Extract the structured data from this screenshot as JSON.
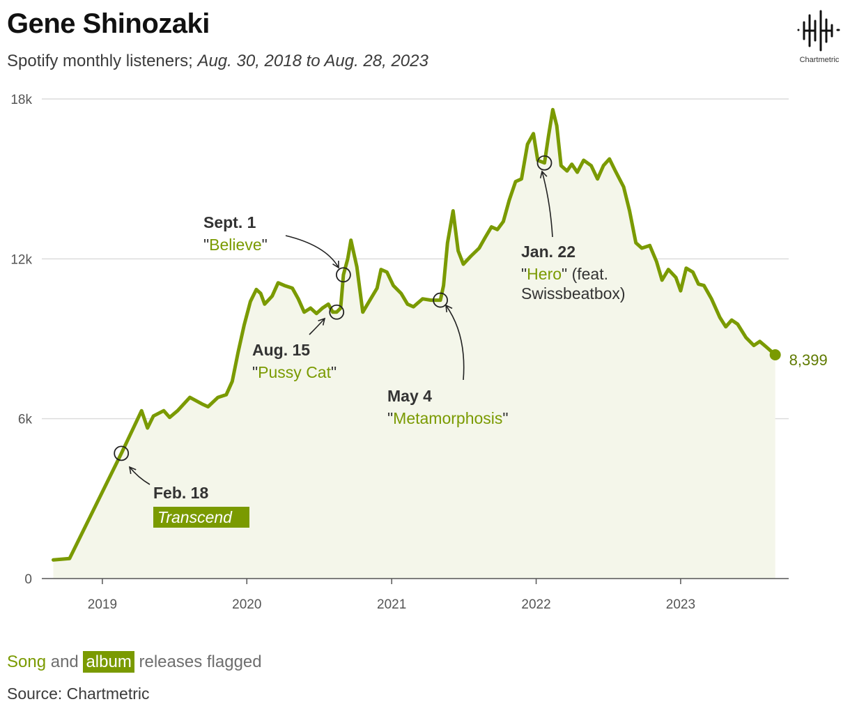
{
  "header": {
    "title": "Gene Shinozaki",
    "subtitle_plain": "Spotify monthly listeners; ",
    "subtitle_dates": "Aug. 30, 2018 to Aug. 28, 2023"
  },
  "logo": {
    "name": "chartmetric-logo-icon",
    "text": "Chartmetric"
  },
  "footer": {
    "song_word": "Song",
    "and_word": " and ",
    "album_word": "album",
    "rest": " releases flagged",
    "source": "Source: Chartmetric"
  },
  "colors": {
    "line": "#7a9a01",
    "area": "#f4f6ea",
    "grid": "#dcdcdc",
    "axis": "#555555"
  },
  "chart_data": {
    "type": "area",
    "title": "Gene Shinozaki",
    "ylim": [
      0,
      18000
    ],
    "xlim": [
      "2018-08-30",
      "2023-08-28"
    ],
    "y_ticks": [
      {
        "value": 0,
        "label": "0"
      },
      {
        "value": 6000,
        "label": "6k"
      },
      {
        "value": 12000,
        "label": "12k"
      },
      {
        "value": 18000,
        "label": "18k"
      }
    ],
    "x_ticks": [
      {
        "value": "2019-01-01",
        "label": "2019"
      },
      {
        "value": "2020-01-01",
        "label": "2020"
      },
      {
        "value": "2021-01-01",
        "label": "2021"
      },
      {
        "value": "2022-01-01",
        "label": "2022"
      },
      {
        "value": "2023-01-01",
        "label": "2023"
      }
    ],
    "grid": true,
    "series": [
      {
        "points": [
          [
            "2018-08-30",
            700
          ],
          [
            "2018-10-10",
            750
          ],
          [
            "2019-02-18",
            4700
          ],
          [
            "2019-04-10",
            6300
          ],
          [
            "2019-04-25",
            5650
          ],
          [
            "2019-05-10",
            6100
          ],
          [
            "2019-06-05",
            6300
          ],
          [
            "2019-06-20",
            6050
          ],
          [
            "2019-07-10",
            6300
          ],
          [
            "2019-08-10",
            6800
          ],
          [
            "2019-09-10",
            6550
          ],
          [
            "2019-09-25",
            6450
          ],
          [
            "2019-10-20",
            6800
          ],
          [
            "2019-11-10",
            6900
          ],
          [
            "2019-11-25",
            7400
          ],
          [
            "2019-12-10",
            8500
          ],
          [
            "2019-12-25",
            9500
          ],
          [
            "2020-01-10",
            10400
          ],
          [
            "2020-01-25",
            10850
          ],
          [
            "2020-02-05",
            10700
          ],
          [
            "2020-02-15",
            10300
          ],
          [
            "2020-03-05",
            10600
          ],
          [
            "2020-03-20",
            11100
          ],
          [
            "2020-04-05",
            11000
          ],
          [
            "2020-04-25",
            10900
          ],
          [
            "2020-05-10",
            10500
          ],
          [
            "2020-05-25",
            10000
          ],
          [
            "2020-06-10",
            10150
          ],
          [
            "2020-06-25",
            9950
          ],
          [
            "2020-07-10",
            10150
          ],
          [
            "2020-07-25",
            10300
          ],
          [
            "2020-08-05",
            10000
          ],
          [
            "2020-08-15",
            10000
          ],
          [
            "2020-08-25",
            10150
          ],
          [
            "2020-09-01",
            11400
          ],
          [
            "2020-09-12",
            12000
          ],
          [
            "2020-09-20",
            12700
          ],
          [
            "2020-10-05",
            11700
          ],
          [
            "2020-10-20",
            10000
          ],
          [
            "2020-11-05",
            10400
          ],
          [
            "2020-11-25",
            10900
          ],
          [
            "2020-12-05",
            11600
          ],
          [
            "2020-12-20",
            11500
          ],
          [
            "2021-01-05",
            11000
          ],
          [
            "2021-01-25",
            10700
          ],
          [
            "2021-02-10",
            10300
          ],
          [
            "2021-02-25",
            10200
          ],
          [
            "2021-03-20",
            10500
          ],
          [
            "2021-04-10",
            10450
          ],
          [
            "2021-05-04",
            10450
          ],
          [
            "2021-05-12",
            11000
          ],
          [
            "2021-05-22",
            12600
          ],
          [
            "2021-06-05",
            13800
          ],
          [
            "2021-06-18",
            12300
          ],
          [
            "2021-07-01",
            11800
          ],
          [
            "2021-07-20",
            12100
          ],
          [
            "2021-08-10",
            12400
          ],
          [
            "2021-08-25",
            12800
          ],
          [
            "2021-09-10",
            13200
          ],
          [
            "2021-09-25",
            13100
          ],
          [
            "2021-10-10",
            13400
          ],
          [
            "2021-10-25",
            14200
          ],
          [
            "2021-11-10",
            14900
          ],
          [
            "2021-11-25",
            15000
          ],
          [
            "2021-12-10",
            16300
          ],
          [
            "2021-12-25",
            16700
          ],
          [
            "2022-01-05",
            15700
          ],
          [
            "2022-01-22",
            15600
          ],
          [
            "2022-02-01",
            16600
          ],
          [
            "2022-02-12",
            17600
          ],
          [
            "2022-02-22",
            17000
          ],
          [
            "2022-03-05",
            15500
          ],
          [
            "2022-03-20",
            15300
          ],
          [
            "2022-04-01",
            15550
          ],
          [
            "2022-04-15",
            15250
          ],
          [
            "2022-05-01",
            15700
          ],
          [
            "2022-05-20",
            15500
          ],
          [
            "2022-06-05",
            15000
          ],
          [
            "2022-06-20",
            15500
          ],
          [
            "2022-07-05",
            15750
          ],
          [
            "2022-07-20",
            15300
          ],
          [
            "2022-08-10",
            14700
          ],
          [
            "2022-08-25",
            13800
          ],
          [
            "2022-09-10",
            12600
          ],
          [
            "2022-09-25",
            12400
          ],
          [
            "2022-10-15",
            12500
          ],
          [
            "2022-11-01",
            11900
          ],
          [
            "2022-11-15",
            11200
          ],
          [
            "2022-12-01",
            11600
          ],
          [
            "2022-12-20",
            11300
          ],
          [
            "2023-01-01",
            10800
          ],
          [
            "2023-01-15",
            11650
          ],
          [
            "2023-02-01",
            11500
          ],
          [
            "2023-02-15",
            11050
          ],
          [
            "2023-03-01",
            11000
          ],
          [
            "2023-03-20",
            10500
          ],
          [
            "2023-04-10",
            9800
          ],
          [
            "2023-04-25",
            9450
          ],
          [
            "2023-05-10",
            9700
          ],
          [
            "2023-05-25",
            9550
          ],
          [
            "2023-06-15",
            9050
          ],
          [
            "2023-07-05",
            8750
          ],
          [
            "2023-07-20",
            8900
          ],
          [
            "2023-08-05",
            8700
          ],
          [
            "2023-08-28",
            8399
          ]
        ]
      }
    ],
    "end_label": {
      "date": "2023-08-28",
      "value": 8399,
      "label": "8,399"
    },
    "annotations": [
      {
        "id": "feb18",
        "date": "2019-02-18",
        "value": 4700,
        "date_label": "Feb. 18",
        "release": "Transcend",
        "kind": "album"
      },
      {
        "id": "aug15",
        "date": "2020-08-15",
        "value": 10000,
        "date_label": "Aug. 15",
        "release": "Pussy Cat",
        "kind": "song"
      },
      {
        "id": "sept1",
        "date": "2020-09-01",
        "value": 11400,
        "date_label": "Sept. 1",
        "release": "Believe",
        "kind": "song"
      },
      {
        "id": "may4",
        "date": "2021-05-04",
        "value": 10450,
        "date_label": "May 4",
        "release": "Metamorphosis",
        "kind": "song"
      },
      {
        "id": "jan22",
        "date": "2022-01-22",
        "value": 15600,
        "date_label": "Jan. 22",
        "release": "Hero",
        "feat_line1": " (feat.",
        "feat_line2": "Swissbeatbox)",
        "kind": "song"
      }
    ]
  }
}
